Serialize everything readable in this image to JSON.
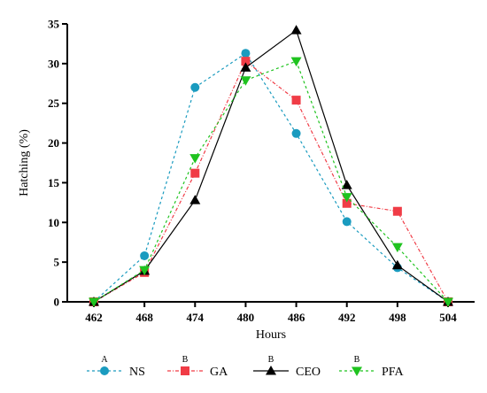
{
  "chart_data": {
    "type": "line",
    "title": "",
    "xlabel": "Hours",
    "ylabel": "Hatching (%)",
    "x": [
      462,
      468,
      474,
      480,
      486,
      492,
      498,
      504
    ],
    "xticks": [
      "462",
      "468",
      "474",
      "480",
      "486",
      "492",
      "498",
      "504"
    ],
    "yticks": [
      "0",
      "5",
      "10",
      "15",
      "20",
      "25",
      "30",
      "35"
    ],
    "ylim": [
      0,
      35
    ],
    "grid": false,
    "legend_position": "bottom",
    "series": [
      {
        "name": "NS",
        "group": "A",
        "color": "#1a9bbf",
        "marker": "circle",
        "dash": "3,3",
        "values": [
          0,
          5.8,
          27.0,
          31.3,
          21.2,
          10.1,
          4.3,
          0
        ]
      },
      {
        "name": "GA",
        "group": "B",
        "color": "#f03c46",
        "marker": "square",
        "dash": "4,2,1,2",
        "values": [
          0,
          3.7,
          16.2,
          30.3,
          25.4,
          12.4,
          11.4,
          0
        ]
      },
      {
        "name": "CEO",
        "group": "B",
        "color": "#000000",
        "marker": "triangle-up",
        "dash": "",
        "values": [
          0,
          3.9,
          12.8,
          29.5,
          34.2,
          14.7,
          4.6,
          0
        ]
      },
      {
        "name": "PFA",
        "group": "B",
        "color": "#1fc31f",
        "marker": "triangle-down",
        "dash": "3,3",
        "values": [
          0,
          4.0,
          18.1,
          27.9,
          30.3,
          13.2,
          6.9,
          0
        ]
      }
    ]
  }
}
